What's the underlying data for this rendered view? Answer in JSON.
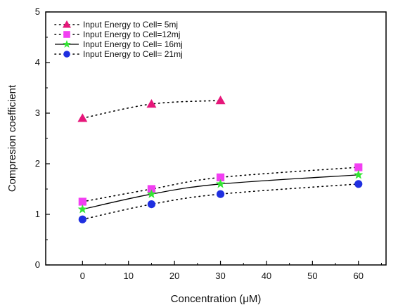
{
  "chart_data": {
    "type": "scatter",
    "xlabel": "Concentration (μM)",
    "ylabel": "Compresion coefficient",
    "xlim": [
      -8,
      66
    ],
    "ylim": [
      0,
      5
    ],
    "xticks": [
      0,
      10,
      20,
      30,
      40,
      50,
      60
    ],
    "yticks": [
      0,
      1,
      2,
      3,
      4,
      5
    ],
    "grid": false,
    "legend_position": "top-left",
    "series": [
      {
        "name": "Input Energy to Cell= 5mj",
        "x": [
          0,
          15,
          30
        ],
        "y": [
          2.9,
          3.18,
          3.25
        ],
        "marker": "triangle",
        "color": "#e6177a",
        "line": "dotted"
      },
      {
        "name": "Input Energy to Cell=12mj",
        "x": [
          0,
          15,
          30,
          60
        ],
        "y": [
          1.25,
          1.5,
          1.73,
          1.93
        ],
        "marker": "square",
        "color": "#f23ff2",
        "line": "dotted"
      },
      {
        "name": "Input Energy to Cell= 16mj",
        "x": [
          0,
          15,
          30,
          60
        ],
        "y": [
          1.1,
          1.4,
          1.6,
          1.78
        ],
        "marker": "star",
        "color": "#33e633",
        "line": "solid"
      },
      {
        "name": "Input Energy to Cell= 21mj",
        "x": [
          0,
          15,
          30,
          60
        ],
        "y": [
          0.9,
          1.2,
          1.4,
          1.6
        ],
        "marker": "circle",
        "color": "#1f2fe0",
        "line": "dotted"
      }
    ]
  }
}
